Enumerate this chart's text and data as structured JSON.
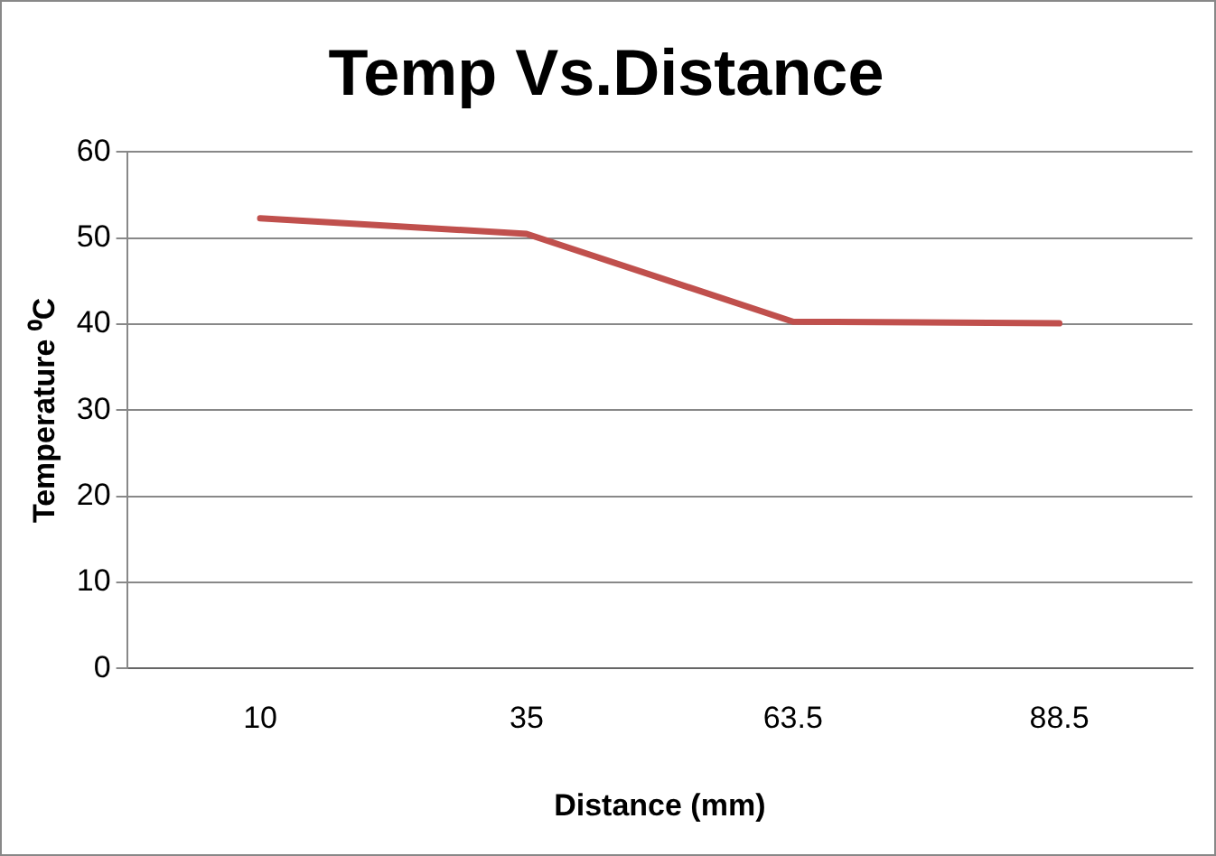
{
  "chart_data": {
    "type": "line",
    "title": "Temp Vs.Distance",
    "xlabel": "Distance (mm)",
    "ylabel": "Temperature ⁰C",
    "categories": [
      "10",
      "35",
      "63.5",
      "88.5"
    ],
    "series": [
      {
        "color": "#c0504d",
        "values": [
          52.3,
          50.5,
          40.3,
          40.1
        ]
      }
    ],
    "ylim": [
      0,
      60
    ],
    "yticks": [
      0,
      10,
      20,
      30,
      40,
      50,
      60
    ],
    "grid": "y",
    "legend": false,
    "marker": "none",
    "line_style": "solid"
  }
}
